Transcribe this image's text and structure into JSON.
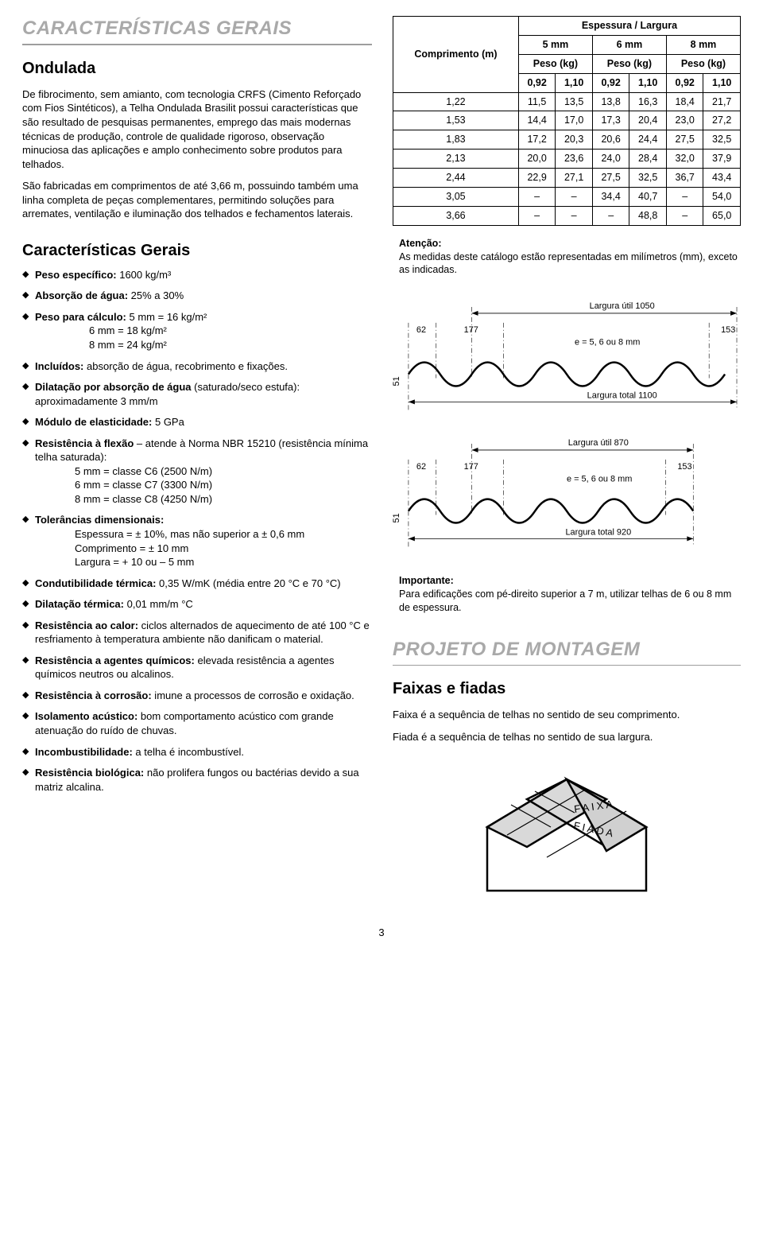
{
  "left": {
    "h1": "CARACTERÍSTICAS GERAIS",
    "h2": "Ondulada",
    "p1": "De fibrocimento, sem amianto, com tecnologia CRFS (Cimento Reforçado com Fios Sintéticos), a Telha Ondulada Brasilit possui características que são resultado de pesquisas permanentes, emprego das mais modernas técnicas de produção, controle de qualidade rigoroso, observação minuciosa das aplicações e amplo conhecimento sobre produtos para telhados.",
    "p2": "São fabricadas em comprimentos de até 3,66 m, possuindo também uma linha completa de peças complementares, permitindo soluções para arremates, ventilação e iluminação dos telhados e fechamentos laterais.",
    "cg": "Características Gerais",
    "b1": {
      "label": "Peso específico:",
      "val": " 1600 kg/m³"
    },
    "b2": {
      "label": "Absorção de água:",
      "val": " 25% a 30%"
    },
    "b3": {
      "label": "Peso para cálculo:",
      "l1": " 5 mm = 16 kg/m²",
      "l2": "6 mm = 18 kg/m²",
      "l3": "8 mm = 24 kg/m²"
    },
    "b4": {
      "label": "Incluídos:",
      "val": " absorção de água, recobrimento e fixações."
    },
    "b5": {
      "label": "Dilatação por absorção de água",
      "val": " (saturado/seco estufa): aproximadamente 3 mm/m"
    },
    "b6": {
      "label": "Módulo de elasticidade:",
      "val": " 5 GPa"
    },
    "b7": {
      "label": "Resistência à flexão",
      "t": " – atende à Norma NBR 15210 (resistência mínima telha saturada):",
      "l1": "5 mm = classe C6 (2500 N/m)",
      "l2": "6 mm = classe C7 (3300 N/m)",
      "l3": "8 mm = classe C8 (4250 N/m)"
    },
    "b8": {
      "label": "Tolerâncias dimensionais:",
      "l1": "Espessura = ± 10%, mas não superior a ± 0,6 mm",
      "l2": "Comprimento = ± 10 mm",
      "l3": "Largura = + 10 ou – 5 mm"
    },
    "b9": {
      "label": "Condutibilidade térmica:",
      "val": " 0,35 W/mK (média entre 20 °C e 70 °C)"
    },
    "b10": {
      "label": "Dilatação térmica:",
      "val": " 0,01 mm/m °C"
    },
    "b11": {
      "label": "Resistência ao calor:",
      "val": " ciclos alternados de aquecimento de até 100 °C e resfriamento à temperatura ambiente não danificam o material."
    },
    "b12": {
      "label": "Resistência a agentes químicos:",
      "val": " elevada resistência a agentes químicos neutros ou alcalinos."
    },
    "b13": {
      "label": "Resistência à corrosão:",
      "val": " imune a processos de corrosão e oxidação."
    },
    "b14": {
      "label": "Isolamento acústico:",
      "val": " bom comportamento acústico com grande atenuação do ruído de chuvas."
    },
    "b15": {
      "label": "Incombustibilidade:",
      "val": " a telha é incombustível."
    },
    "b16": {
      "label": "Resistência biológica:",
      "val": " não prolifera fungos ou bactérias devido a sua matriz alcalina."
    }
  },
  "table": {
    "h_top": "Espessura / Largura",
    "h_comp": "Comprimento (m)",
    "h5": "5 mm",
    "h6": "6 mm",
    "h8": "8 mm",
    "hp": "Peso (kg)",
    "sub": [
      "0,92",
      "1,10",
      "0,92",
      "1,10",
      "0,92",
      "1,10"
    ],
    "rows": [
      [
        "1,22",
        "11,5",
        "13,5",
        "13,8",
        "16,3",
        "18,4",
        "21,7"
      ],
      [
        "1,53",
        "14,4",
        "17,0",
        "17,3",
        "20,4",
        "23,0",
        "27,2"
      ],
      [
        "1,83",
        "17,2",
        "20,3",
        "20,6",
        "24,4",
        "27,5",
        "32,5"
      ],
      [
        "2,13",
        "20,0",
        "23,6",
        "24,0",
        "28,4",
        "32,0",
        "37,9"
      ],
      [
        "2,44",
        "22,9",
        "27,1",
        "27,5",
        "32,5",
        "36,7",
        "43,4"
      ],
      [
        "3,05",
        "–",
        "–",
        "34,4",
        "40,7",
        "–",
        "54,0"
      ],
      [
        "3,66",
        "–",
        "–",
        "–",
        "48,8",
        "–",
        "65,0"
      ]
    ]
  },
  "atencao": {
    "t": "Atenção:",
    "p": "As medidas deste catálogo estão representadas em milímetros (mm), exceto as indicadas."
  },
  "diag1": {
    "util": "Largura útil 1050",
    "total": "Largura total 1100",
    "e": "e = 5, 6 ou 8 mm",
    "d62": "62",
    "d177": "177",
    "d153": "153",
    "d51": "51"
  },
  "diag2": {
    "util": "Largura útil 870",
    "total": "Largura total 920",
    "e": "e = 5, 6 ou 8 mm",
    "d62": "62",
    "d177": "177",
    "d153": "153",
    "d51": "51"
  },
  "importante": {
    "t": "Importante:",
    "p": "Para edificações com pé-direito superior a 7 m, utilizar telhas de 6 ou 8 mm de espessura."
  },
  "proj": {
    "h1": "PROJETO DE MONTAGEM",
    "h2": "Faixas e fiadas",
    "p1": "Faixa é a sequência de telhas no sentido de seu comprimento.",
    "p2": "Fiada é a sequência de telhas no sentido de sua largura."
  },
  "house": {
    "faixa": "FAIXA",
    "fiada": "FIADA"
  },
  "page": "3"
}
